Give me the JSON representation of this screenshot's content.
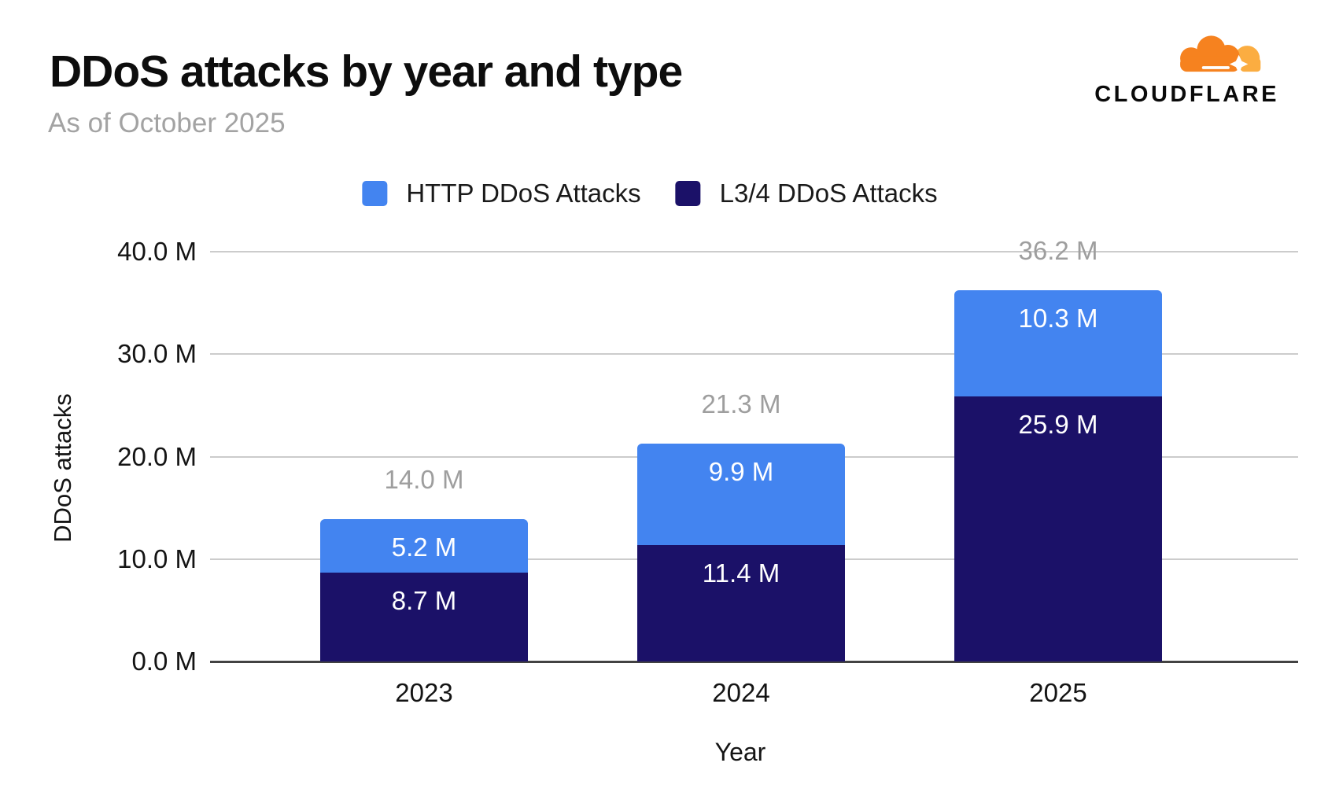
{
  "header": {
    "title": "DDoS attacks by year and type",
    "subtitle": "As of October 2025",
    "brand": "CLOUDFLARE"
  },
  "legend": [
    {
      "label": "HTTP DDoS Attacks",
      "color": "#4384F0"
    },
    {
      "label": "L3/4 DDoS Attacks",
      "color": "#1B1168"
    }
  ],
  "chart_data": {
    "type": "bar",
    "stacked": true,
    "title": "DDoS attacks by year and type",
    "subtitle": "As of October 2025",
    "categories": [
      "2023",
      "2024",
      "2025"
    ],
    "series": [
      {
        "name": "HTTP DDoS Attacks",
        "color": "#4384F0",
        "values": [
          5.2,
          9.9,
          10.3
        ],
        "labels": [
          "5.2 M",
          "9.9 M",
          "10.3 M"
        ]
      },
      {
        "name": "L3/4 DDoS Attacks",
        "color": "#1B1168",
        "values": [
          8.7,
          11.4,
          25.9
        ],
        "labels": [
          "8.7 M",
          "11.4 M",
          "25.9 M"
        ]
      }
    ],
    "totals": [
      14.0,
      21.3,
      36.2
    ],
    "total_labels": [
      "14.0 M",
      "21.3 M",
      "36.2 M"
    ],
    "xlabel": "Year",
    "ylabel": "DDoS attacks",
    "ylim": [
      0,
      40
    ],
    "yticks": [
      0,
      10,
      20,
      30,
      40
    ],
    "ytick_labels": [
      "0.0 M",
      "10.0 M",
      "20.0 M",
      "30.0 M",
      "40.0 M"
    ],
    "grid": true,
    "legend_position": "top",
    "colors": {
      "grid": "#cccccc",
      "axis_line": "#424242",
      "total_label": "#9e9e9e",
      "segment_label": "#ffffff",
      "logo_orange": "#F6821F",
      "logo_light_orange": "#FBAD41"
    }
  }
}
